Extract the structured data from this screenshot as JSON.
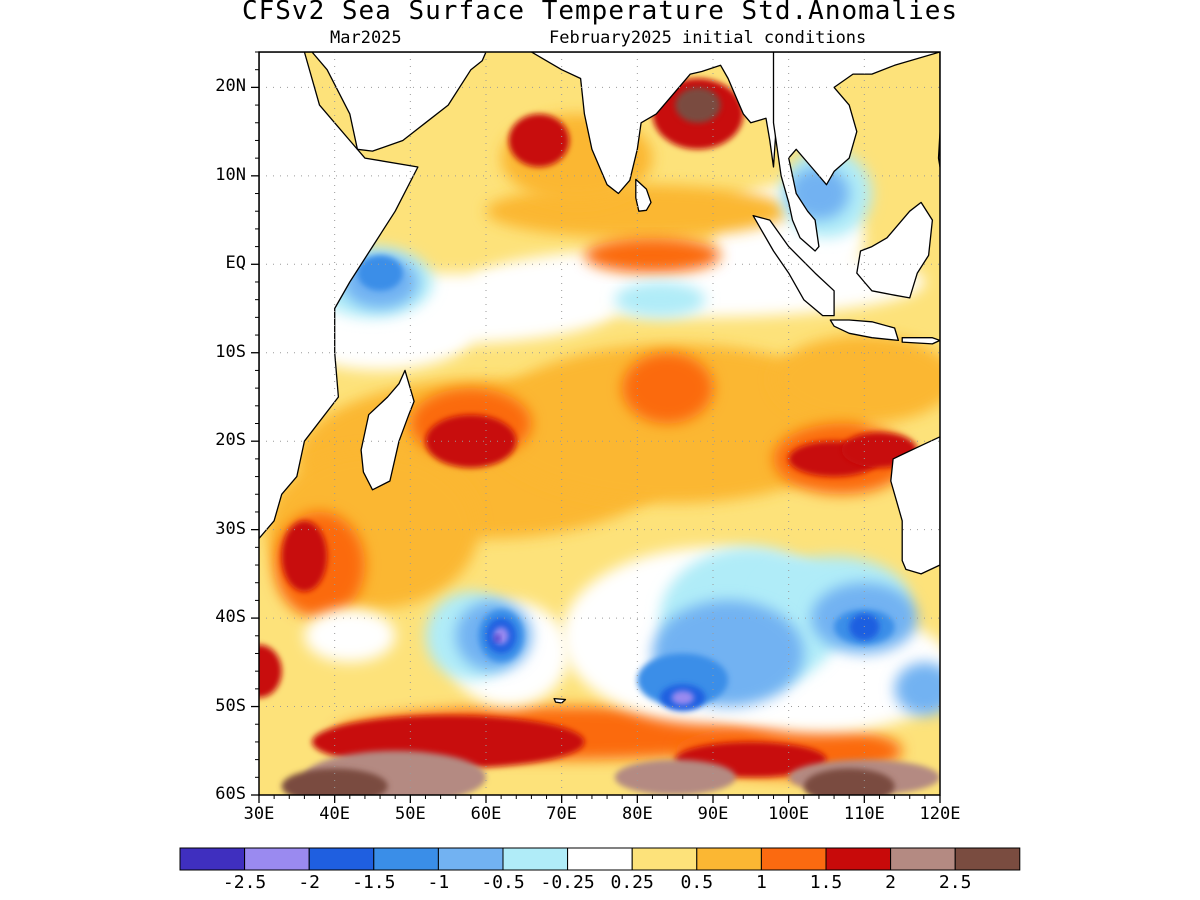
{
  "title": "CFSv2 Sea Surface Temperature Std.Anomalies",
  "subtitle_left": "Mar2025",
  "subtitle_right": "February2025 initial conditions",
  "lat_labels": [
    "20N",
    "10N",
    "EQ",
    "10S",
    "20S",
    "30S",
    "40S",
    "50S",
    "60S"
  ],
  "lon_labels": [
    "30E",
    "40E",
    "50E",
    "60E",
    "70E",
    "80E",
    "90E",
    "100E",
    "110E",
    "120E"
  ],
  "colorbar": {
    "colors": [
      "#3f2fbf",
      "#9a8af0",
      "#1f5fe0",
      "#3a8ee8",
      "#72b2f2",
      "#b0ecf8",
      "#ffffff",
      "#fde27a",
      "#fbb733",
      "#fb6a10",
      "#c80a0a",
      "#b48a82",
      "#7a4c40"
    ],
    "labels": [
      "-2.5",
      "-2",
      "-1.5",
      "-1",
      "-0.5",
      "-0.25",
      "0.25",
      "0.5",
      "1",
      "1.5",
      "2",
      "2.5"
    ]
  },
  "chart_data": {
    "type": "heatmap",
    "title": "CFSv2 Sea Surface Temperature Std.Anomalies",
    "xlim": [
      30,
      120
    ],
    "ylim": [
      -60,
      24
    ],
    "units": "standard deviations",
    "levels": [
      -2.5,
      -2,
      -1.5,
      -1,
      -0.5,
      -0.25,
      0.25,
      0.5,
      1,
      1.5,
      2,
      2.5
    ],
    "features": [
      {
        "region": "Arabian Sea coast near 67E,14N",
        "value": 2.2
      },
      {
        "region": "Bay of Bengal head near 88E,18N",
        "value": 2.4
      },
      {
        "region": "South-central Indian Ocean near 57E,19S",
        "value": 1.8
      },
      {
        "region": "Off Western Australia near 110E,22S",
        "value": 1.8
      },
      {
        "region": "Southern Ocean band 40E-70E,55S",
        "value": 2.4
      },
      {
        "region": "South of Africa near 33E,33S",
        "value": 1.7
      },
      {
        "region": "Near 62E,42S",
        "value": -2.2
      },
      {
        "region": "Near 85E,49S",
        "value": -2.0
      },
      {
        "region": "Near 110E,40S",
        "value": -1.3
      },
      {
        "region": "Near 45E,2S",
        "value": -0.9
      },
      {
        "region": "Near 105E,8N",
        "value": -0.8
      },
      {
        "region": "Equatorial band 60E-95E,10N-0",
        "value": 1.2
      }
    ]
  }
}
